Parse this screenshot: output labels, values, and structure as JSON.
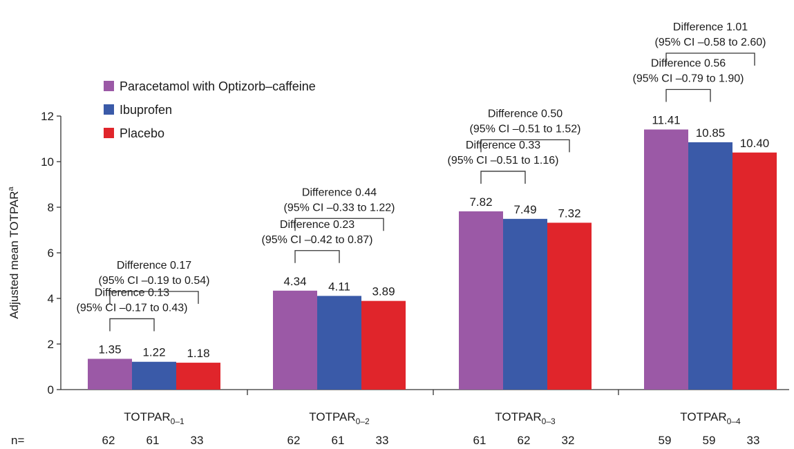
{
  "chart_data": {
    "type": "bar",
    "ylabel": "Adjusted mean TOTPAR",
    "ylabel_sup": "a",
    "ylim": [
      0,
      12
    ],
    "yticks": [
      0,
      2,
      4,
      6,
      8,
      10,
      12
    ],
    "grid": false,
    "legend_position": "top-left",
    "categories": [
      {
        "base": "TOTPAR",
        "sub": "0–1"
      },
      {
        "base": "TOTPAR",
        "sub": "0–2"
      },
      {
        "base": "TOTPAR",
        "sub": "0–3"
      },
      {
        "base": "TOTPAR",
        "sub": "0–4"
      }
    ],
    "series": [
      {
        "name": "Paracetamol with Optizorb–caffeine",
        "color": "#9b59a6",
        "values": [
          1.35,
          4.34,
          7.82,
          11.41
        ],
        "labels": [
          "1.35",
          "4.34",
          "7.82",
          "11.41"
        ]
      },
      {
        "name": "Ibuprofen",
        "color": "#3a5aa8",
        "values": [
          1.22,
          4.11,
          7.49,
          10.85
        ],
        "labels": [
          "1.22",
          "4.11",
          "7.49",
          "10.85"
        ]
      },
      {
        "name": "Placebo",
        "color": "#e0252b",
        "values": [
          1.18,
          3.89,
          7.32,
          10.4
        ],
        "labels": [
          "1.18",
          "3.89",
          "7.32",
          "10.40"
        ]
      }
    ],
    "n_label": "n=",
    "n_values": [
      [
        "62",
        "61",
        "33"
      ],
      [
        "62",
        "61",
        "33"
      ],
      [
        "61",
        "62",
        "32"
      ],
      [
        "59",
        "59",
        "33"
      ]
    ],
    "annotations": [
      {
        "group": 0,
        "from": 0,
        "to": 1,
        "level": 1.35,
        "line1": "Difference 0.13",
        "line2": "(95% CI –0.17 to 0.43)"
      },
      {
        "group": 0,
        "from": 0,
        "to": 2,
        "level": 2.55,
        "line1": "Difference 0.17",
        "line2": "(95% CI –0.19 to 0.54)"
      },
      {
        "group": 1,
        "from": 0,
        "to": 1,
        "level": 4.34,
        "line1": "Difference 0.23",
        "line2": "(95% CI –0.42 to 0.87)"
      },
      {
        "group": 1,
        "from": 0,
        "to": 2,
        "level": 5.75,
        "line1": "Difference 0.44",
        "line2": "(95% CI –0.33 to 1.22)"
      },
      {
        "group": 2,
        "from": 0,
        "to": 1,
        "level": 7.82,
        "line1": "Difference 0.33",
        "line2": "(95% CI –0.51 to 1.16)"
      },
      {
        "group": 2,
        "from": 0,
        "to": 2,
        "level": 9.2,
        "line1": "Difference 0.50",
        "line2": "(95% CI –0.51 to 1.52)"
      },
      {
        "group": 3,
        "from": 0,
        "to": 1,
        "level": 11.41,
        "line1": "Difference 0.56",
        "line2": "(95% CI –0.79 to 1.90)"
      },
      {
        "group": 3,
        "from": 0,
        "to": 2,
        "level": 13.0,
        "line1": "Difference 1.01",
        "line2": "(95% CI –0.58 to 2.60)"
      }
    ]
  }
}
